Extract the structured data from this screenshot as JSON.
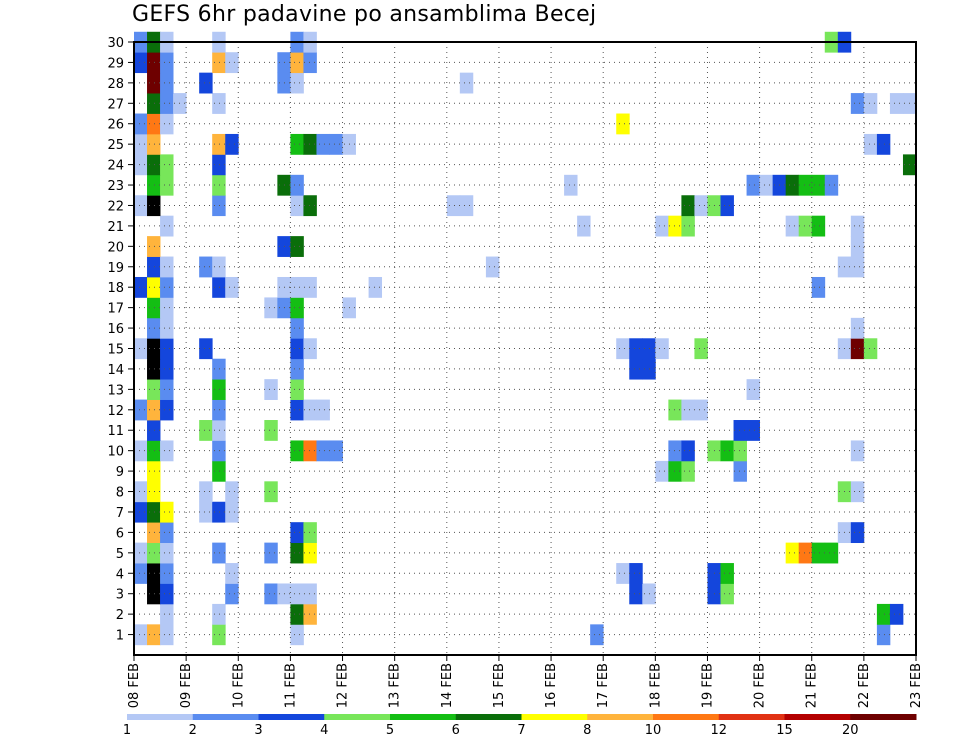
{
  "chart_data": {
    "type": "heatmap",
    "title": "GEFS 6hr padavine po ansamblima Becej",
    "xlabel": "",
    "ylabel": "",
    "x_ticks": [
      "08 FEB",
      "09 FEB",
      "10 FEB",
      "11 FEB",
      "12 FEB",
      "13 FEB",
      "14 FEB",
      "15 FEB",
      "16 FEB",
      "17 FEB",
      "18 FEB",
      "19 FEB",
      "20 FEB",
      "21 FEB",
      "22 FEB",
      "23 FEB"
    ],
    "x_range_days": [
      0,
      15
    ],
    "y_ticks": [
      1,
      2,
      3,
      4,
      5,
      6,
      7,
      8,
      9,
      10,
      11,
      12,
      13,
      14,
      15,
      16,
      17,
      18,
      19,
      20,
      21,
      22,
      23,
      24,
      25,
      26,
      27,
      28,
      29,
      30
    ],
    "y_range": [
      0,
      30
    ],
    "grid": true,
    "colorbar": {
      "labels": [
        "1",
        "2",
        "3",
        "4",
        "5",
        "6",
        "7",
        "8",
        "10",
        "12",
        "15",
        "20"
      ],
      "colors": [
        "#b4c8f5",
        "#5a8cf0",
        "#1446dc",
        "#78e65a",
        "#14be14",
        "#0a6e0a",
        "#ffff00",
        "#ffb43c",
        "#ff7814",
        "#e13214",
        "#b40000",
        "#6e0000"
      ]
    },
    "cell_step": 0.25,
    "cells": [
      [
        1,
        0.0,
        1
      ],
      [
        1,
        0.25,
        8
      ],
      [
        1,
        0.5,
        1
      ],
      [
        1,
        1.5,
        4
      ],
      [
        1,
        3.0,
        1
      ],
      [
        1,
        8.75,
        2
      ],
      [
        1,
        14.25,
        2
      ],
      [
        2,
        0.5,
        1
      ],
      [
        2,
        1.5,
        1
      ],
      [
        2,
        3.0,
        6
      ],
      [
        2,
        3.25,
        8
      ],
      [
        2,
        14.25,
        5
      ],
      [
        2,
        14.5,
        3
      ],
      [
        3,
        0.25,
        13
      ],
      [
        3,
        0.5,
        3
      ],
      [
        3,
        1.75,
        2
      ],
      [
        3,
        2.5,
        2
      ],
      [
        3,
        2.75,
        1
      ],
      [
        3,
        3.0,
        1
      ],
      [
        3,
        3.25,
        1
      ],
      [
        3,
        9.5,
        3
      ],
      [
        3,
        9.75,
        1
      ],
      [
        3,
        11.0,
        3
      ],
      [
        3,
        11.25,
        4
      ],
      [
        4,
        0.0,
        2
      ],
      [
        4,
        0.25,
        13
      ],
      [
        4,
        0.5,
        2
      ],
      [
        4,
        1.75,
        1
      ],
      [
        4,
        9.25,
        1
      ],
      [
        4,
        9.5,
        3
      ],
      [
        4,
        11.0,
        3
      ],
      [
        4,
        11.25,
        5
      ],
      [
        5,
        0.0,
        1
      ],
      [
        5,
        0.25,
        4
      ],
      [
        5,
        0.5,
        1
      ],
      [
        5,
        1.5,
        2
      ],
      [
        5,
        2.5,
        2
      ],
      [
        5,
        3.0,
        6
      ],
      [
        5,
        3.25,
        7
      ],
      [
        5,
        12.5,
        7
      ],
      [
        5,
        12.75,
        9
      ],
      [
        5,
        13.0,
        5
      ],
      [
        5,
        13.25,
        5
      ],
      [
        6,
        0.25,
        8
      ],
      [
        6,
        0.5,
        2
      ],
      [
        6,
        3.0,
        3
      ],
      [
        6,
        3.25,
        4
      ],
      [
        6,
        13.5,
        1
      ],
      [
        6,
        13.75,
        3
      ],
      [
        7,
        0.0,
        3
      ],
      [
        7,
        0.25,
        6
      ],
      [
        7,
        0.5,
        7
      ],
      [
        7,
        1.25,
        1
      ],
      [
        7,
        1.5,
        3
      ],
      [
        7,
        1.75,
        1
      ],
      [
        8,
        0.0,
        1
      ],
      [
        8,
        0.25,
        7
      ],
      [
        8,
        1.25,
        1
      ],
      [
        8,
        1.75,
        1
      ],
      [
        8,
        2.5,
        4
      ],
      [
        8,
        13.5,
        4
      ],
      [
        8,
        13.75,
        1
      ],
      [
        9,
        0.25,
        7
      ],
      [
        9,
        1.5,
        5
      ],
      [
        9,
        10.0,
        1
      ],
      [
        9,
        10.25,
        5
      ],
      [
        9,
        10.5,
        4
      ],
      [
        9,
        11.5,
        2
      ],
      [
        10,
        0.0,
        1
      ],
      [
        10,
        0.25,
        5
      ],
      [
        10,
        0.5,
        1
      ],
      [
        10,
        1.5,
        2
      ],
      [
        10,
        3.0,
        5
      ],
      [
        10,
        3.25,
        9
      ],
      [
        10,
        3.5,
        2
      ],
      [
        10,
        3.75,
        2
      ],
      [
        10,
        10.25,
        2
      ],
      [
        10,
        10.5,
        3
      ],
      [
        10,
        11.0,
        4
      ],
      [
        10,
        11.25,
        5
      ],
      [
        10,
        11.5,
        4
      ],
      [
        10,
        13.75,
        1
      ],
      [
        11,
        0.25,
        3
      ],
      [
        11,
        1.25,
        4
      ],
      [
        11,
        1.5,
        1
      ],
      [
        11,
        2.5,
        4
      ],
      [
        11,
        11.5,
        3
      ],
      [
        11,
        11.75,
        3
      ],
      [
        12,
        0.0,
        2
      ],
      [
        12,
        0.25,
        8
      ],
      [
        12,
        0.5,
        3
      ],
      [
        12,
        1.5,
        2
      ],
      [
        12,
        3.0,
        3
      ],
      [
        12,
        3.25,
        1
      ],
      [
        12,
        3.5,
        1
      ],
      [
        12,
        10.25,
        4
      ],
      [
        12,
        10.5,
        1
      ],
      [
        12,
        10.75,
        1
      ],
      [
        13,
        0.25,
        4
      ],
      [
        13,
        0.5,
        2
      ],
      [
        13,
        1.5,
        5
      ],
      [
        13,
        2.5,
        1
      ],
      [
        13,
        3.0,
        4
      ],
      [
        13,
        11.75,
        1
      ],
      [
        14,
        0.25,
        13
      ],
      [
        14,
        0.5,
        3
      ],
      [
        14,
        1.5,
        2
      ],
      [
        14,
        3.0,
        2
      ],
      [
        14,
        9.5,
        3
      ],
      [
        14,
        9.75,
        3
      ],
      [
        15,
        0.0,
        1
      ],
      [
        15,
        0.25,
        13
      ],
      [
        15,
        0.5,
        3
      ],
      [
        15,
        1.25,
        3
      ],
      [
        15,
        3.0,
        3
      ],
      [
        15,
        3.25,
        1
      ],
      [
        15,
        9.25,
        1
      ],
      [
        15,
        9.5,
        3
      ],
      [
        15,
        9.75,
        3
      ],
      [
        15,
        10.0,
        1
      ],
      [
        15,
        10.75,
        4
      ],
      [
        15,
        13.5,
        1
      ],
      [
        15,
        13.75,
        12
      ],
      [
        15,
        14.0,
        4
      ],
      [
        16,
        0.25,
        2
      ],
      [
        16,
        0.5,
        1
      ],
      [
        16,
        3.0,
        2
      ],
      [
        16,
        13.75,
        1
      ],
      [
        17,
        0.25,
        5
      ],
      [
        17,
        0.5,
        1
      ],
      [
        17,
        2.5,
        1
      ],
      [
        17,
        2.75,
        2
      ],
      [
        17,
        3.0,
        5
      ],
      [
        17,
        4.0,
        1
      ],
      [
        18,
        0.0,
        3
      ],
      [
        18,
        0.25,
        7
      ],
      [
        18,
        0.5,
        2
      ],
      [
        18,
        1.5,
        3
      ],
      [
        18,
        1.75,
        1
      ],
      [
        18,
        2.75,
        1
      ],
      [
        18,
        3.0,
        1
      ],
      [
        18,
        3.25,
        1
      ],
      [
        18,
        4.5,
        1
      ],
      [
        18,
        13.0,
        2
      ],
      [
        19,
        0.25,
        3
      ],
      [
        19,
        0.5,
        1
      ],
      [
        19,
        1.25,
        2
      ],
      [
        19,
        1.5,
        1
      ],
      [
        19,
        6.75,
        1
      ],
      [
        19,
        13.5,
        1
      ],
      [
        19,
        13.75,
        1
      ],
      [
        20,
        0.25,
        8
      ],
      [
        20,
        2.75,
        3
      ],
      [
        20,
        3.0,
        6
      ],
      [
        20,
        13.75,
        1
      ],
      [
        21,
        0.5,
        1
      ],
      [
        21,
        8.5,
        1
      ],
      [
        21,
        10.0,
        1
      ],
      [
        21,
        10.25,
        7
      ],
      [
        21,
        10.5,
        4
      ],
      [
        21,
        12.5,
        1
      ],
      [
        21,
        12.75,
        4
      ],
      [
        21,
        13.0,
        5
      ],
      [
        21,
        13.75,
        1
      ],
      [
        22,
        0.0,
        1
      ],
      [
        22,
        0.25,
        14
      ],
      [
        22,
        1.5,
        2
      ],
      [
        22,
        3.0,
        1
      ],
      [
        22,
        3.25,
        6
      ],
      [
        22,
        6.0,
        1
      ],
      [
        22,
        6.25,
        1
      ],
      [
        22,
        10.5,
        6
      ],
      [
        22,
        10.75,
        1
      ],
      [
        22,
        11.0,
        4
      ],
      [
        22,
        11.25,
        3
      ],
      [
        23,
        0.25,
        5
      ],
      [
        23,
        0.5,
        4
      ],
      [
        23,
        1.5,
        4
      ],
      [
        23,
        2.75,
        6
      ],
      [
        23,
        3.0,
        2
      ],
      [
        23,
        8.25,
        1
      ],
      [
        23,
        11.75,
        2
      ],
      [
        23,
        12.0,
        1
      ],
      [
        23,
        12.25,
        3
      ],
      [
        23,
        12.5,
        6
      ],
      [
        23,
        12.75,
        5
      ],
      [
        23,
        13.0,
        5
      ],
      [
        23,
        13.25,
        2
      ],
      [
        24,
        0.0,
        1
      ],
      [
        24,
        0.25,
        6
      ],
      [
        24,
        0.5,
        4
      ],
      [
        24,
        1.5,
        3
      ],
      [
        24,
        14.75,
        6
      ],
      [
        25,
        0.0,
        1
      ],
      [
        25,
        0.25,
        8
      ],
      [
        25,
        1.5,
        8
      ],
      [
        25,
        1.75,
        3
      ],
      [
        25,
        3.0,
        5
      ],
      [
        25,
        3.25,
        6
      ],
      [
        25,
        3.5,
        2
      ],
      [
        25,
        3.75,
        2
      ],
      [
        25,
        4.0,
        1
      ],
      [
        25,
        14.0,
        1
      ],
      [
        25,
        14.25,
        3
      ],
      [
        26,
        0.0,
        2
      ],
      [
        26,
        0.25,
        9
      ],
      [
        26,
        0.5,
        1
      ],
      [
        26,
        9.25,
        7
      ],
      [
        27,
        0.25,
        6
      ],
      [
        27,
        0.5,
        2
      ],
      [
        27,
        0.75,
        1
      ],
      [
        27,
        1.5,
        1
      ],
      [
        27,
        13.75,
        2
      ],
      [
        27,
        14.0,
        1
      ],
      [
        27,
        14.5,
        1
      ],
      [
        27,
        14.75,
        1
      ],
      [
        28,
        0.25,
        12
      ],
      [
        28,
        0.5,
        2
      ],
      [
        28,
        1.25,
        3
      ],
      [
        28,
        2.75,
        2
      ],
      [
        28,
        3.0,
        1
      ],
      [
        28,
        6.25,
        1
      ],
      [
        29,
        0.0,
        3
      ],
      [
        29,
        0.25,
        12
      ],
      [
        29,
        0.5,
        2
      ],
      [
        29,
        1.5,
        8
      ],
      [
        29,
        1.75,
        1
      ],
      [
        29,
        2.75,
        2
      ],
      [
        29,
        3.0,
        8
      ],
      [
        29,
        3.25,
        2
      ],
      [
        30,
        0.0,
        2
      ],
      [
        30,
        0.25,
        6
      ],
      [
        30,
        0.5,
        1
      ],
      [
        30,
        1.5,
        1
      ],
      [
        30,
        3.0,
        2
      ],
      [
        30,
        3.25,
        1
      ],
      [
        30,
        13.25,
        4
      ],
      [
        30,
        13.5,
        3
      ]
    ]
  }
}
